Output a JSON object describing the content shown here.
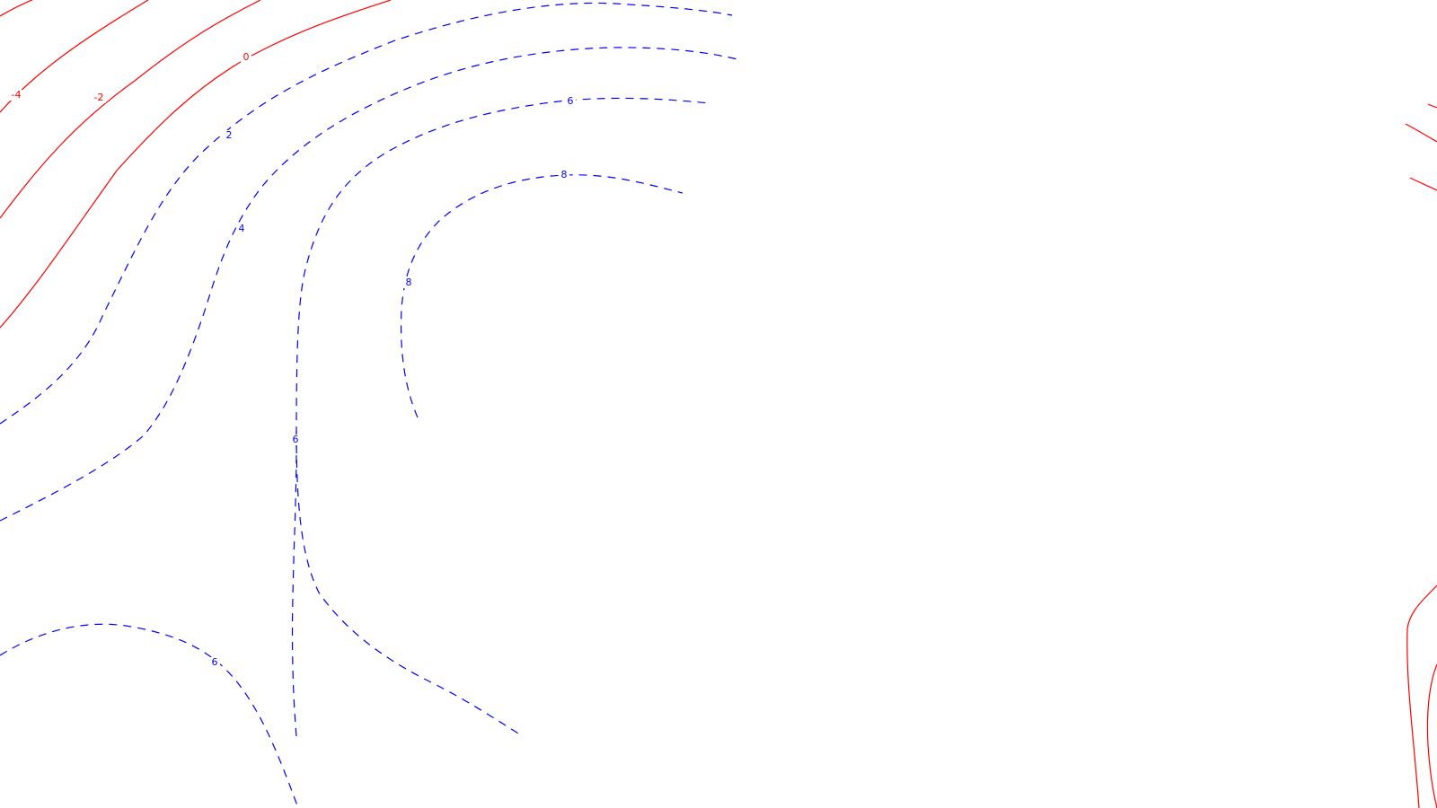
{
  "map": {
    "colors": {
      "background": "#ffffff",
      "negative_contour": "#ff0000",
      "positive_contour": "#0000ff"
    },
    "line_styles": {
      "negative": "solid",
      "positive": "dashed"
    },
    "contour_labels": {
      "neg4": "-4",
      "neg2": "-2",
      "zero": "0",
      "pos2": "2",
      "pos4": "4",
      "pos6_top": "6",
      "pos8_top": "8",
      "pos8_left": "8",
      "pos6_mid": "6",
      "pos6_bottom": "6"
    }
  }
}
